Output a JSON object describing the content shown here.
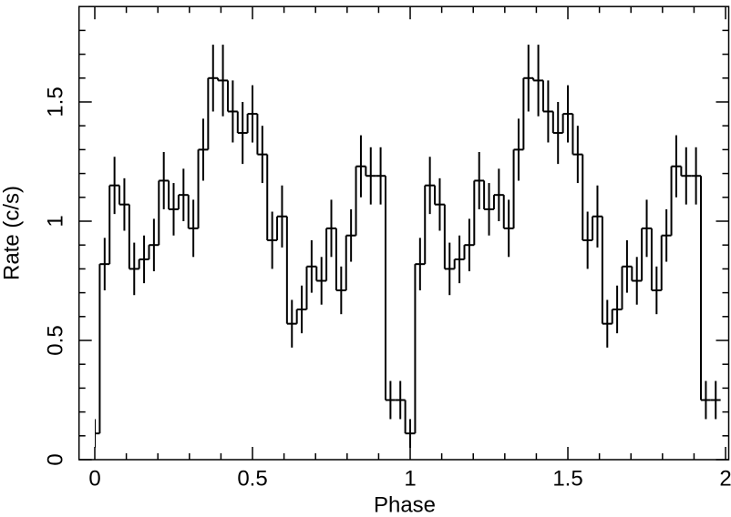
{
  "chart_data": {
    "type": "step",
    "x_label": "Phase",
    "y_label": "Rate (c/s)",
    "x": [
      0,
      0.03125,
      0.0625,
      0.09375,
      0.125,
      0.15625,
      0.1875,
      0.21875,
      0.25,
      0.28125,
      0.3125,
      0.34375,
      0.375,
      0.40625,
      0.4375,
      0.46875,
      0.5,
      0.53125,
      0.5625,
      0.59375,
      0.625,
      0.65625,
      0.6875,
      0.71875,
      0.75,
      0.78125,
      0.8125,
      0.84375,
      0.875,
      0.90625,
      0.9375,
      0.96875,
      1,
      1.03125,
      1.0625,
      1.09375,
      1.125,
      1.15625,
      1.1875,
      1.21875,
      1.25,
      1.28125,
      1.3125,
      1.34375,
      1.375,
      1.40625,
      1.4375,
      1.46875,
      1.5,
      1.53125,
      1.5625,
      1.59375,
      1.625,
      1.65625,
      1.6875,
      1.71875,
      1.75,
      1.78125,
      1.8125,
      1.84375,
      1.875,
      1.90625,
      1.9375,
      1.96875
    ],
    "values": [
      0.11,
      0.82,
      1.15,
      1.07,
      0.8,
      0.84,
      0.9,
      1.17,
      1.05,
      1.11,
      0.97,
      1.3,
      1.6,
      1.59,
      1.46,
      1.37,
      1.45,
      1.28,
      0.92,
      1.02,
      0.57,
      0.63,
      0.81,
      0.75,
      0.97,
      0.71,
      0.94,
      1.23,
      1.19,
      1.19,
      0.25,
      0.25,
      0.11,
      0.82,
      1.15,
      1.07,
      0.8,
      0.84,
      0.9,
      1.17,
      1.05,
      1.11,
      0.97,
      1.3,
      1.6,
      1.59,
      1.46,
      1.37,
      1.45,
      1.28,
      0.92,
      1.02,
      0.57,
      0.63,
      0.81,
      0.75,
      0.97,
      0.71,
      0.94,
      1.23,
      1.19,
      1.19,
      0.25,
      0.25
    ],
    "errors": [
      0.06,
      0.11,
      0.12,
      0.11,
      0.11,
      0.1,
      0.11,
      0.12,
      0.11,
      0.11,
      0.12,
      0.13,
      0.14,
      0.15,
      0.13,
      0.13,
      0.12,
      0.12,
      0.12,
      0.13,
      0.1,
      0.1,
      0.11,
      0.1,
      0.12,
      0.1,
      0.11,
      0.13,
      0.12,
      0.12,
      0.08,
      0.08,
      0.06,
      0.11,
      0.12,
      0.11,
      0.11,
      0.1,
      0.11,
      0.12,
      0.11,
      0.11,
      0.12,
      0.13,
      0.14,
      0.15,
      0.13,
      0.13,
      0.12,
      0.12,
      0.12,
      0.13,
      0.1,
      0.1,
      0.11,
      0.1,
      0.12,
      0.1,
      0.11,
      0.13,
      0.12,
      0.12,
      0.08,
      0.08
    ],
    "bin_width": 0.03125,
    "color": "#000000",
    "xlim": [
      -0.05,
      2.01
    ],
    "ylim": [
      0,
      1.9
    ],
    "xticks": [
      0,
      0.5,
      1,
      1.5,
      2
    ],
    "yticks": [
      0,
      0.5,
      1,
      1.5
    ],
    "xminorticks": [
      0.1,
      0.2,
      0.3,
      0.4,
      0.6,
      0.7,
      0.8,
      0.9,
      1.1,
      1.2,
      1.3,
      1.4,
      1.6,
      1.7,
      1.8,
      1.9
    ],
    "yminorticks": [
      0.1,
      0.2,
      0.3,
      0.4,
      0.6,
      0.7,
      0.8,
      0.9,
      1.1,
      1.2,
      1.3,
      1.4,
      1.6,
      1.7,
      1.8
    ]
  }
}
